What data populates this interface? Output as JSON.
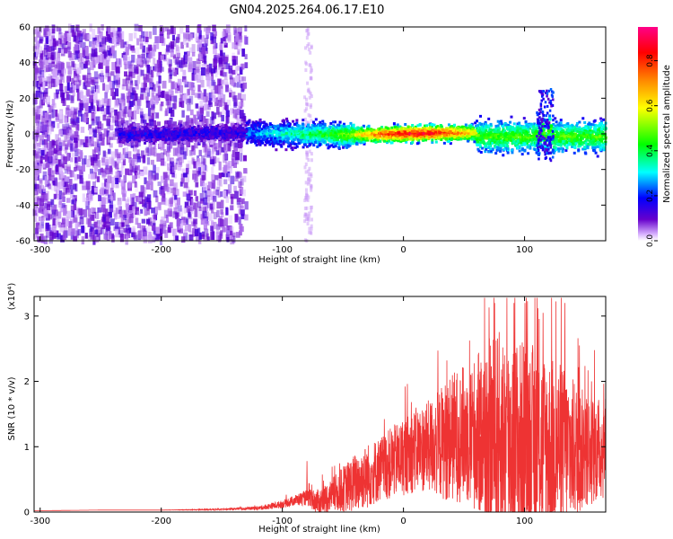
{
  "title": "GN04.2025.264.06.17.E10",
  "colors": {
    "snr_line": "#ee3333",
    "frame": "#000000",
    "background": "#ffffff",
    "colormap": [
      "#ffffff",
      "#6600cc",
      "#0000ff",
      "#00ffff",
      "#00ff00",
      "#ffff00",
      "#ff8800",
      "#ff0000",
      "#ff0088"
    ]
  },
  "chart_data": [
    {
      "type": "heatmap",
      "title": "GN04.2025.264.06.17.E10",
      "xlabel": "Height of straight line (km)",
      "ylabel": "Frequency (Hz)",
      "xlim": [
        -305,
        167
      ],
      "ylim": [
        -60,
        60
      ],
      "x_ticks": [
        -300,
        -200,
        -100,
        0,
        100
      ],
      "y_ticks": [
        -60,
        -40,
        -20,
        0,
        20,
        40,
        60
      ],
      "colorbar": {
        "label": "Normalized spectral amplitude",
        "range": [
          0,
          0.95
        ],
        "ticks": [
          0.0,
          0.2,
          0.4,
          0.6,
          0.8
        ]
      },
      "description_bands": [
        {
          "x_range": [
            -305,
            -130
          ],
          "freq_spread": [
            -60,
            60
          ],
          "amplitude": 0.05
        },
        {
          "x_range": [
            -130,
            -40
          ],
          "freq_center": 0,
          "freq_halfwidth": 6,
          "amplitude": 0.35
        },
        {
          "x_range": [
            -40,
            60
          ],
          "freq_center": 0,
          "freq_halfwidth": 4,
          "amplitude": 0.85
        },
        {
          "x_range": [
            60,
            167
          ],
          "freq_center": -2,
          "freq_halfwidth": 10,
          "amplitude": 0.5
        }
      ]
    },
    {
      "type": "line",
      "xlabel": "Height of straight line (km)",
      "ylabel": "SNR (10 * v/v)",
      "y_multiplier": "(x10⁴)",
      "xlim": [
        -305,
        167
      ],
      "ylim": [
        0,
        3.3
      ],
      "x_ticks": [
        -300,
        -200,
        -100,
        0,
        100
      ],
      "y_ticks": [
        0,
        1,
        2,
        3
      ],
      "series": [
        {
          "x": [
            -305,
            -250,
            -200,
            -150,
            -120,
            -100,
            -90,
            -80,
            -70,
            -60,
            -50,
            -40,
            -30,
            -20,
            -10,
            0,
            10,
            20,
            30,
            40,
            50,
            60,
            70,
            80,
            90,
            100,
            110,
            120,
            130,
            140,
            150,
            160,
            167
          ],
          "y": [
            0.02,
            0.03,
            0.03,
            0.04,
            0.06,
            0.12,
            0.18,
            0.22,
            0.15,
            0.25,
            0.35,
            0.45,
            0.55,
            0.65,
            0.75,
            0.85,
            0.95,
            1.0,
            1.05,
            1.15,
            1.2,
            1.2,
            1.15,
            1.1,
            1.1,
            1.05,
            1.05,
            1.0,
            1.0,
            0.95,
            0.95,
            0.95,
            1.0
          ],
          "spread": [
            0.0,
            0.0,
            0.0,
            0.01,
            0.03,
            0.06,
            0.08,
            0.12,
            0.2,
            0.25,
            0.35,
            0.45,
            0.5,
            0.5,
            0.55,
            0.6,
            0.65,
            0.7,
            0.85,
            1.0,
            1.05,
            1.2,
            1.5,
            1.7,
            1.6,
            1.6,
            1.5,
            1.4,
            1.3,
            1.1,
            0.9,
            0.8,
            0.8
          ],
          "peaks": [
            [
              -80,
              0.78
            ],
            [
              -10,
              1.2
            ],
            [
              40,
              2.0
            ],
            [
              63,
              2.15
            ],
            [
              75,
              3.2
            ],
            [
              91,
              3.2
            ],
            [
              100,
              3.2
            ],
            [
              115,
              3.05
            ],
            [
              122,
              2.85
            ],
            [
              133,
              3.2
            ],
            [
              145,
              2.55
            ],
            [
              155,
              2.0
            ],
            [
              165,
              1.55
            ]
          ]
        }
      ]
    }
  ]
}
